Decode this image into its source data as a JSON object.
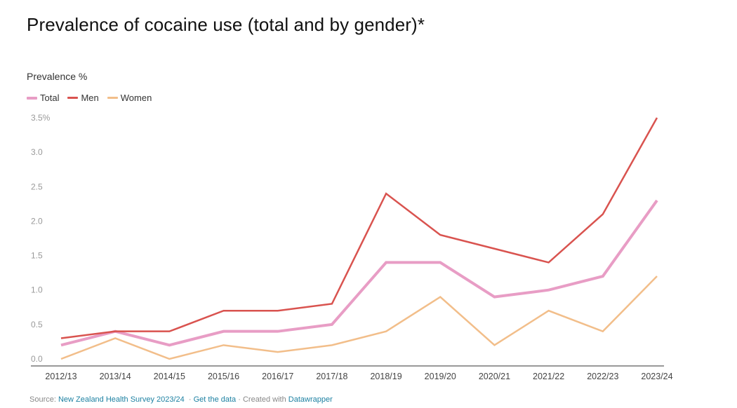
{
  "header": {
    "title": "Prevalence of cocaine use (total and by gender)*",
    "y_axis_label": "Prevalence %"
  },
  "legend": [
    {
      "label": "Total",
      "color": "#e89dc5"
    },
    {
      "label": "Men",
      "color": "#d9534f"
    },
    {
      "label": "Women",
      "color": "#f2be8a"
    }
  ],
  "footer": {
    "source_prefix": "Source:",
    "source_link": "New Zealand Health Survey 2023/24",
    "sep1": "·",
    "get_data_link": "Get the data",
    "sep2": "·",
    "created_with": "Created with",
    "datawrapper_link": "Datawrapper"
  },
  "chart_data": {
    "type": "line",
    "title": "Prevalence of cocaine use (total and by gender)*",
    "xlabel": "",
    "ylabel": "Prevalence %",
    "ylim": [
      0,
      3.5
    ],
    "y_ticks": [
      "0.0",
      "0.5",
      "1.0",
      "1.5",
      "2.0",
      "2.5",
      "3.0",
      "3.5%"
    ],
    "grid": false,
    "legend_position": "top-left",
    "categories": [
      "2012/13",
      "2013/14",
      "2014/15",
      "2015/16",
      "2016/17",
      "2017/18",
      "2018/19",
      "2019/20",
      "2020/21",
      "2021/22",
      "2022/23",
      "2023/24"
    ],
    "series": [
      {
        "name": "Total",
        "color": "#e89dc5",
        "width": 4,
        "values": [
          0.2,
          0.4,
          0.2,
          0.4,
          0.4,
          0.5,
          1.4,
          1.4,
          0.9,
          1.0,
          1.2,
          2.3
        ]
      },
      {
        "name": "Men",
        "color": "#d9534f",
        "width": 2.5,
        "values": [
          0.3,
          0.4,
          0.4,
          0.7,
          0.7,
          0.8,
          2.4,
          1.8,
          1.6,
          1.4,
          2.1,
          3.5
        ]
      },
      {
        "name": "Women",
        "color": "#f2be8a",
        "width": 2.5,
        "values": [
          0.0,
          0.3,
          0.0,
          0.2,
          0.1,
          0.2,
          0.4,
          0.9,
          0.2,
          0.7,
          0.4,
          1.2
        ]
      }
    ]
  }
}
